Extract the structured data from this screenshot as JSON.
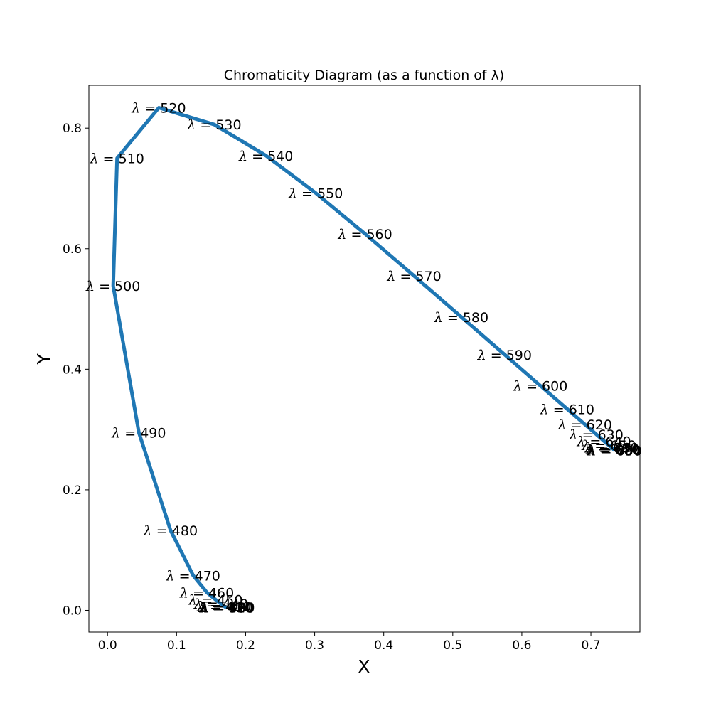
{
  "chart_data": {
    "type": "line",
    "title": "Chromaticity Diagram (as a function of λ)",
    "xlabel": "X",
    "ylabel": "Y",
    "xlim": [
      -0.027,
      0.771
    ],
    "ylim": [
      -0.036,
      0.871
    ],
    "xticks": [
      0.0,
      0.1,
      0.2,
      0.3,
      0.4,
      0.5,
      0.6,
      0.7
    ],
    "xtick_labels": [
      "0.0",
      "0.1",
      "0.2",
      "0.3",
      "0.4",
      "0.5",
      "0.6",
      "0.7"
    ],
    "yticks": [
      0.0,
      0.2,
      0.4,
      0.6,
      0.8
    ],
    "ytick_labels": [
      "0.0",
      "0.2",
      "0.4",
      "0.6",
      "0.8"
    ],
    "grid": false,
    "line_color": "#1f77b4",
    "series": [
      {
        "points": [
          {
            "wavelength": 380,
            "x": 0.1741,
            "y": 0.005
          },
          {
            "wavelength": 390,
            "x": 0.1738,
            "y": 0.0049
          },
          {
            "wavelength": 400,
            "x": 0.1733,
            "y": 0.0048
          },
          {
            "wavelength": 410,
            "x": 0.1726,
            "y": 0.0048
          },
          {
            "wavelength": 420,
            "x": 0.1714,
            "y": 0.0051
          },
          {
            "wavelength": 430,
            "x": 0.1689,
            "y": 0.0069
          },
          {
            "wavelength": 440,
            "x": 0.1644,
            "y": 0.0109
          },
          {
            "wavelength": 450,
            "x": 0.1566,
            "y": 0.0177
          },
          {
            "wavelength": 460,
            "x": 0.144,
            "y": 0.0297
          },
          {
            "wavelength": 470,
            "x": 0.1241,
            "y": 0.0578
          },
          {
            "wavelength": 480,
            "x": 0.0913,
            "y": 0.1327
          },
          {
            "wavelength": 490,
            "x": 0.0454,
            "y": 0.295
          },
          {
            "wavelength": 500,
            "x": 0.0082,
            "y": 0.5384
          },
          {
            "wavelength": 510,
            "x": 0.0139,
            "y": 0.7502
          },
          {
            "wavelength": 520,
            "x": 0.0743,
            "y": 0.8338
          },
          {
            "wavelength": 530,
            "x": 0.1547,
            "y": 0.8059
          },
          {
            "wavelength": 540,
            "x": 0.2296,
            "y": 0.7543
          },
          {
            "wavelength": 550,
            "x": 0.3016,
            "y": 0.6923
          },
          {
            "wavelength": 560,
            "x": 0.3731,
            "y": 0.6245
          },
          {
            "wavelength": 570,
            "x": 0.4441,
            "y": 0.5547
          },
          {
            "wavelength": 580,
            "x": 0.5125,
            "y": 0.4866
          },
          {
            "wavelength": 590,
            "x": 0.5752,
            "y": 0.4242
          },
          {
            "wavelength": 600,
            "x": 0.627,
            "y": 0.3725
          },
          {
            "wavelength": 610,
            "x": 0.6658,
            "y": 0.334
          },
          {
            "wavelength": 620,
            "x": 0.6915,
            "y": 0.3083
          },
          {
            "wavelength": 630,
            "x": 0.7079,
            "y": 0.292
          },
          {
            "wavelength": 640,
            "x": 0.719,
            "y": 0.2809
          },
          {
            "wavelength": 650,
            "x": 0.726,
            "y": 0.274
          },
          {
            "wavelength": 660,
            "x": 0.73,
            "y": 0.27
          },
          {
            "wavelength": 670,
            "x": 0.732,
            "y": 0.268
          },
          {
            "wavelength": 680,
            "x": 0.7334,
            "y": 0.2666
          },
          {
            "wavelength": 690,
            "x": 0.7344,
            "y": 0.2656
          },
          {
            "wavelength": 700,
            "x": 0.7347,
            "y": 0.2653
          }
        ]
      }
    ]
  }
}
